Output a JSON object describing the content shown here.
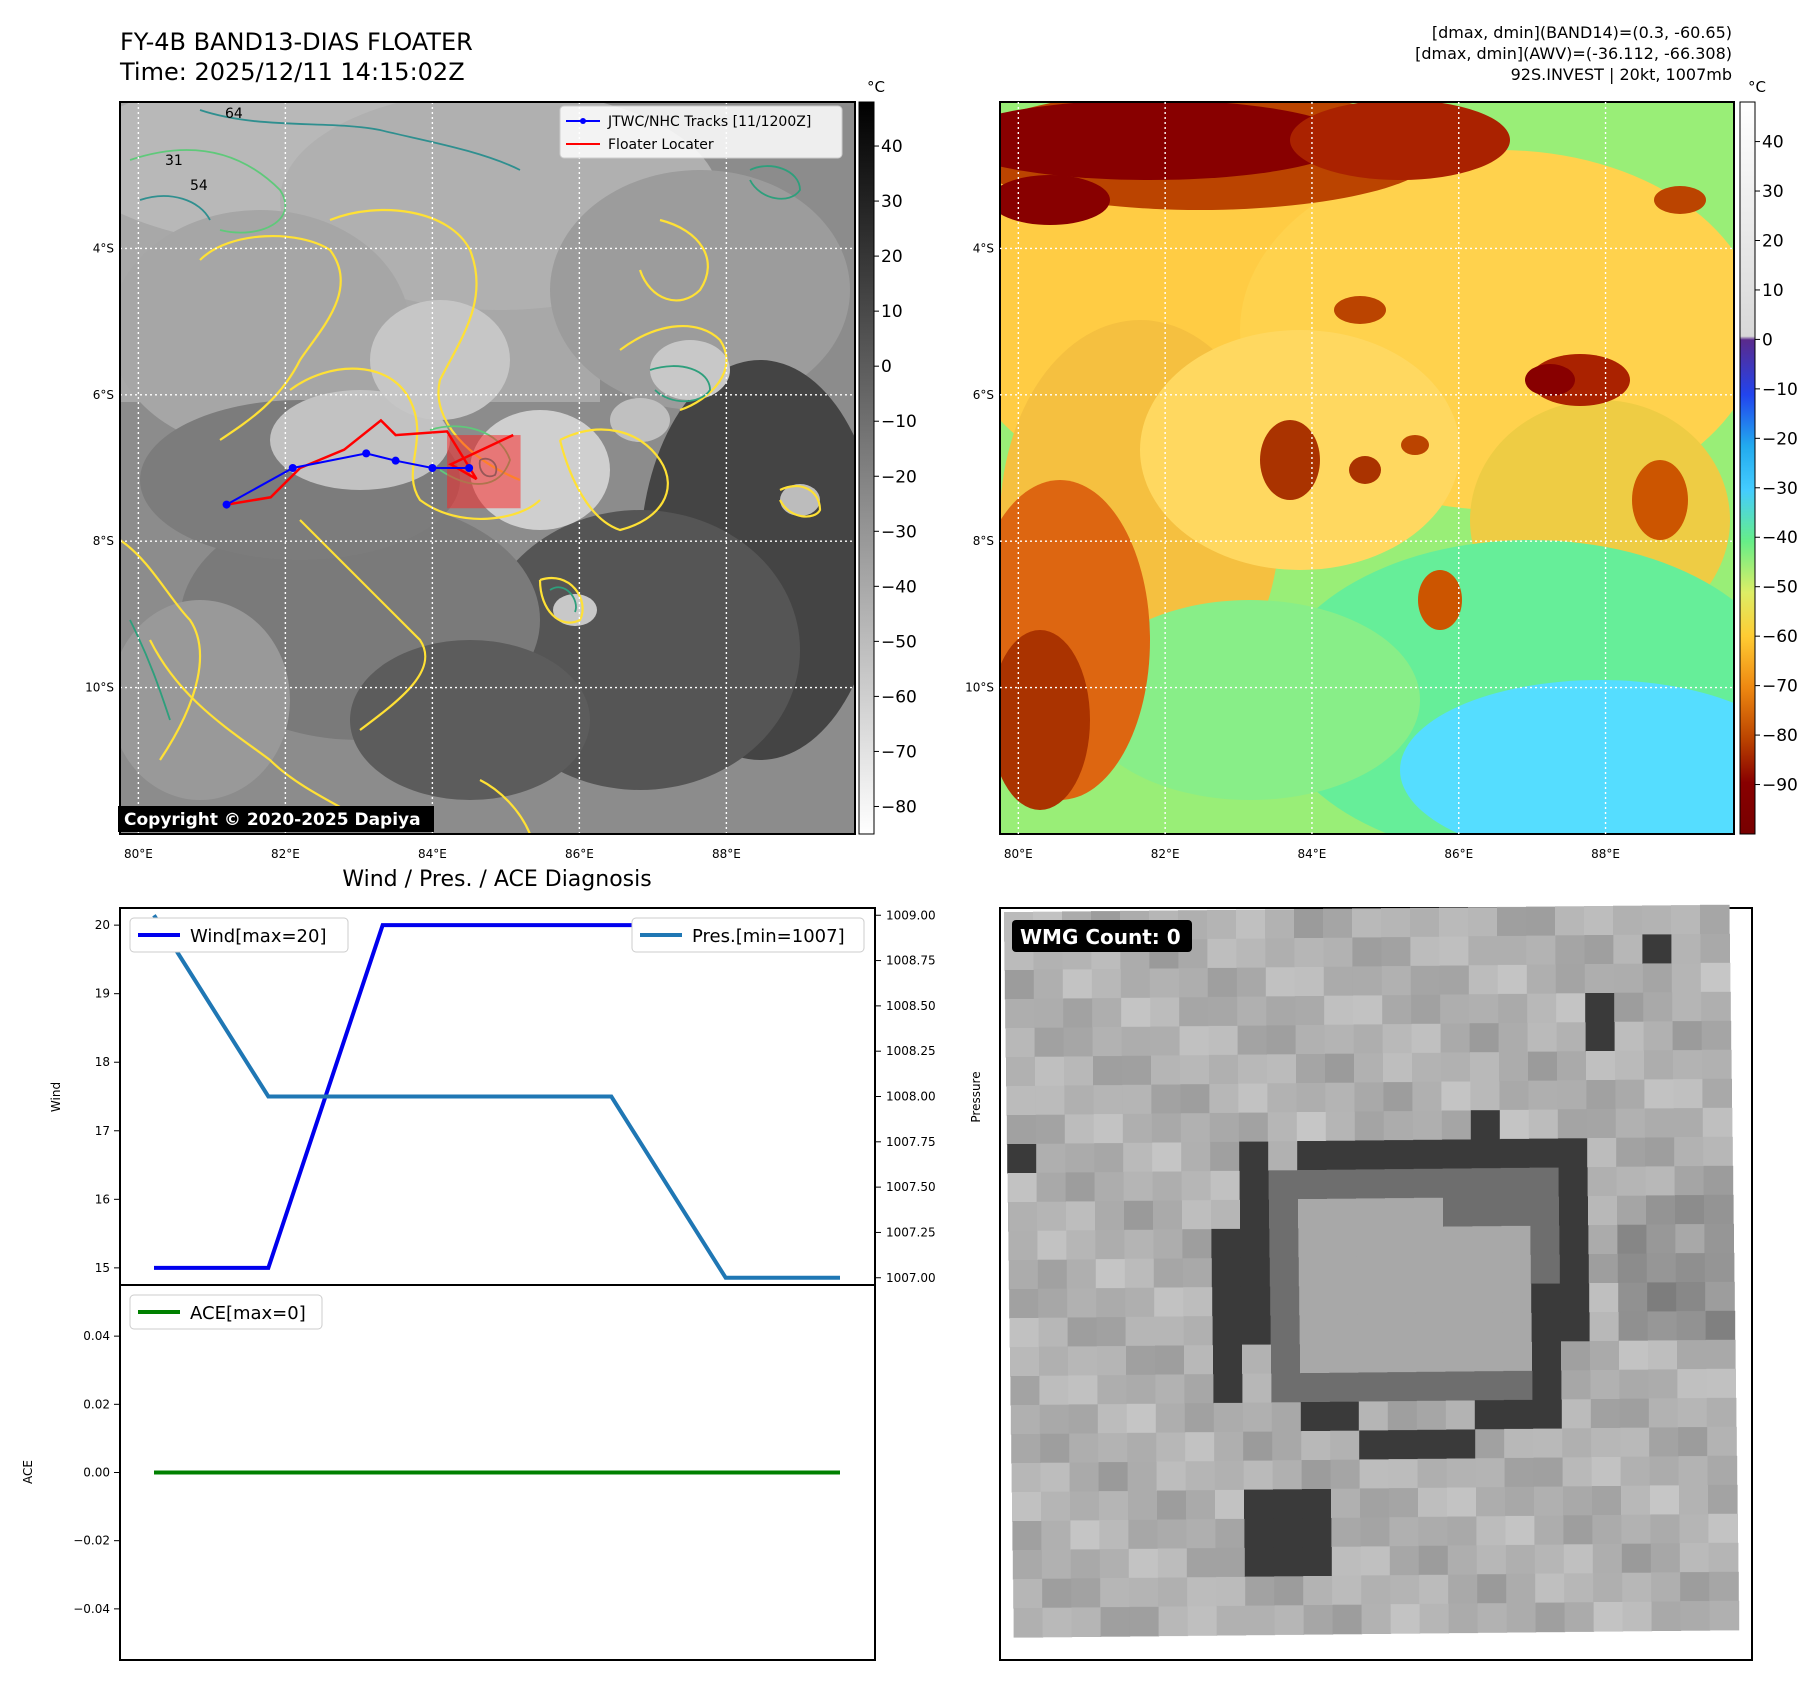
{
  "header_left": {
    "title": "FY-4B BAND13-DIAS FLOATER",
    "time": "Time: 2025/12/11 14:15:02Z"
  },
  "header_right": {
    "line1": "[dmax, dmin](BAND14)=(0.3, -60.65)",
    "line2": "[dmax, dmin](AWV)=(-36.112, -66.308)",
    "line3": "92S.INVEST | 20kt, 1007mb"
  },
  "copyright": "Copyright © 2020-2025 Dapiya",
  "diag_title": "Wind / Pres. / ACE Diagnosis",
  "wmg_label": "WMG Count: 0",
  "colors": {
    "wind": "#0000ee",
    "pressure": "#1f77b4",
    "ace": "#008000",
    "track_jtwc": "#0000ff",
    "floater": "#ff0000",
    "contour_31": "#ffe135",
    "contour_54": "#2e9f7c",
    "contour_64": "#2f8f8f"
  },
  "chart_data": [
    {
      "type": "heatmap",
      "name": "ir_map",
      "colorbar_unit": "°C",
      "colorbar_ticks": [
        40,
        30,
        20,
        10,
        0,
        -10,
        -20,
        -30,
        -40,
        -50,
        -60,
        -70,
        -80
      ],
      "colorbar_range": [
        -85,
        48
      ],
      "lon_ticks": [
        "80°E",
        "82°E",
        "84°E",
        "86°E",
        "88°E"
      ],
      "lon_values": [
        80,
        82,
        84,
        86,
        88
      ],
      "lat_ticks": [
        "4°S",
        "6°S",
        "8°S",
        "10°S"
      ],
      "lat_values": [
        -4,
        -6,
        -8,
        -10
      ],
      "xlim": [
        79.75,
        89.75
      ],
      "ylim": [
        -12,
        -2
      ],
      "contour_labels": [
        "31",
        "54",
        "64"
      ],
      "legend": [
        "JTWC/NHC Tracks [11/1200Z]",
        "Floater Locater"
      ],
      "jtwc_track": [
        {
          "lon": 81.2,
          "lat": -7.5
        },
        {
          "lon": 82.1,
          "lat": -7.0
        },
        {
          "lon": 83.1,
          "lat": -6.8
        },
        {
          "lon": 83.5,
          "lat": -6.9
        },
        {
          "lon": 84.0,
          "lat": -7.0
        },
        {
          "lon": 84.5,
          "lat": -7.0
        }
      ],
      "floater_track": [
        {
          "lon": 81.2,
          "lat": -7.5
        },
        {
          "lon": 81.8,
          "lat": -7.4
        },
        {
          "lon": 82.2,
          "lat": -7.0
        },
        {
          "lon": 82.8,
          "lat": -6.75
        },
        {
          "lon": 83.3,
          "lat": -6.35
        },
        {
          "lon": 83.5,
          "lat": -6.55
        },
        {
          "lon": 84.2,
          "lat": -6.5
        },
        {
          "lon": 84.6,
          "lat": -7.15
        },
        {
          "lon": 84.25,
          "lat": -6.95
        },
        {
          "lon": 85.1,
          "lat": -6.55
        }
      ],
      "floater_box": {
        "lon_min": 84.2,
        "lon_max": 85.2,
        "lat_min": -7.55,
        "lat_max": -6.55
      }
    },
    {
      "type": "heatmap",
      "name": "enhanced_ir_map",
      "colorbar_unit": "°C",
      "colorbar_ticks": [
        40,
        30,
        20,
        10,
        0,
        -10,
        -20,
        -30,
        -40,
        -50,
        -60,
        -70,
        -80,
        -90
      ],
      "colorbar_range": [
        -100,
        48
      ],
      "lon_ticks": [
        "80°E",
        "82°E",
        "84°E",
        "86°E",
        "88°E"
      ],
      "lon_values": [
        80,
        82,
        84,
        86,
        88
      ],
      "lat_ticks": [
        "4°S",
        "6°S",
        "8°S",
        "10°S"
      ],
      "lat_values": [
        -4,
        -6,
        -8,
        -10
      ],
      "xlim": [
        79.75,
        89.75
      ],
      "ylim": [
        -12,
        -2
      ]
    },
    {
      "type": "line",
      "name": "wind_pressure",
      "x": [
        0,
        1,
        2,
        3,
        4,
        5,
        6
      ],
      "series": [
        {
          "name": "Wind[max=20]",
          "axis": "left",
          "values": [
            15,
            15,
            20,
            20,
            20,
            20,
            20
          ]
        },
        {
          "name": "Pres.[min=1007]",
          "axis": "right",
          "values": [
            1009.0,
            1008.0,
            1008.0,
            1008.0,
            1008.0,
            1007.0,
            1007.0
          ]
        }
      ],
      "ylabel": "Wind",
      "ylim": [
        14.75,
        20.25
      ],
      "yticks": [
        20,
        19,
        18,
        17,
        16,
        15
      ],
      "y2label": "Pressure",
      "y2lim": [
        1006.96,
        1009.04
      ],
      "y2ticks": [
        "1009.00",
        "1008.75",
        "1008.50",
        "1008.25",
        "1008.00",
        "1007.75",
        "1007.50",
        "1007.25",
        "1007.00"
      ]
    },
    {
      "type": "line",
      "name": "ace",
      "x": [
        0,
        1,
        2,
        3,
        4,
        5,
        6
      ],
      "series": [
        {
          "name": "ACE[max=0]",
          "values": [
            0,
            0,
            0,
            0,
            0,
            0,
            0
          ]
        }
      ],
      "ylabel": "ACE",
      "ylim": [
        -0.055,
        0.055
      ],
      "yticks": [
        "0.04",
        "0.02",
        "0.00",
        "−0.02",
        "−0.04"
      ]
    }
  ]
}
